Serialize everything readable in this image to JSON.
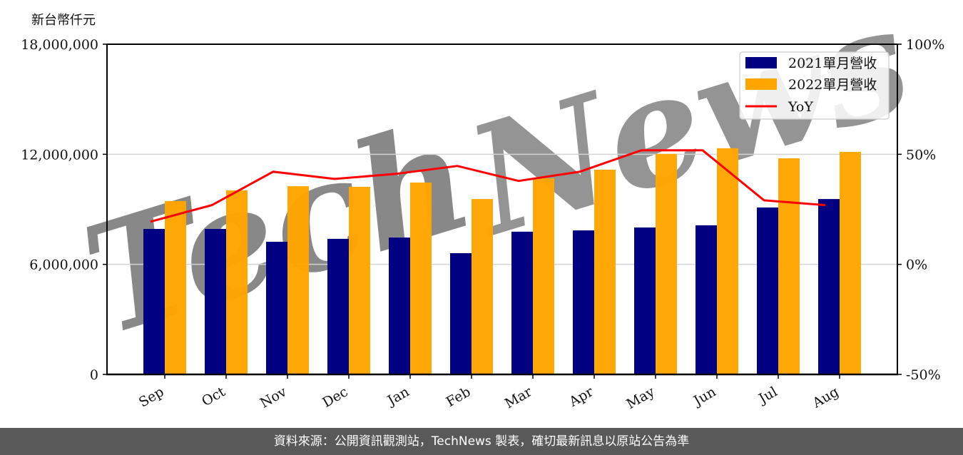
{
  "unit_label": "新台幣仟元",
  "footer": "資料來源：公開資訊觀測站，TechNews 製表，確切最新訊息以原站公告為準",
  "watermark": "TechNews",
  "colors": {
    "series_2021": "#000080",
    "series_2022": "#FFA500",
    "yoy": "#FF0000",
    "grid": "#d3d3d3",
    "footer_bg": "#595959"
  },
  "chart_data": {
    "type": "bar",
    "title": "",
    "xlabel": "",
    "ylabel": "新台幣仟元",
    "y2label": "",
    "categories": [
      "Sep",
      "Oct",
      "Nov",
      "Dec",
      "Jan",
      "Feb",
      "Mar",
      "Apr",
      "May",
      "Jun",
      "Jul",
      "Aug"
    ],
    "series": [
      {
        "name": "2021單月營收",
        "type": "bar",
        "axis": "left",
        "values": [
          7930000,
          7930000,
          7230000,
          7390000,
          7460000,
          6610000,
          7780000,
          7850000,
          8010000,
          8130000,
          9100000,
          9560000
        ]
      },
      {
        "name": "2022單月營收",
        "type": "bar",
        "axis": "left",
        "values": [
          9450000,
          10030000,
          10260000,
          10230000,
          10460000,
          9560000,
          10690000,
          11160000,
          12020000,
          12330000,
          11780000,
          12130000
        ]
      },
      {
        "name": "YoY",
        "type": "line",
        "axis": "right",
        "unit": "%",
        "values": [
          19.4,
          26.9,
          42.1,
          38.8,
          41.1,
          44.7,
          37.9,
          42.1,
          51.8,
          51.8,
          29.1,
          26.9
        ]
      }
    ],
    "ylim": [
      0,
      18000000
    ],
    "yticks": [
      0,
      6000000,
      12000000,
      18000000
    ],
    "ytick_labels": [
      "0",
      "6,000,000",
      "12,000,000",
      "18,000,000"
    ],
    "y2lim": [
      -50,
      100
    ],
    "y2ticks": [
      -50,
      0,
      50,
      100
    ],
    "y2tick_labels": [
      "-50%",
      "0%",
      "50%",
      "100%"
    ],
    "grid": true,
    "legend_position": "upper right"
  }
}
